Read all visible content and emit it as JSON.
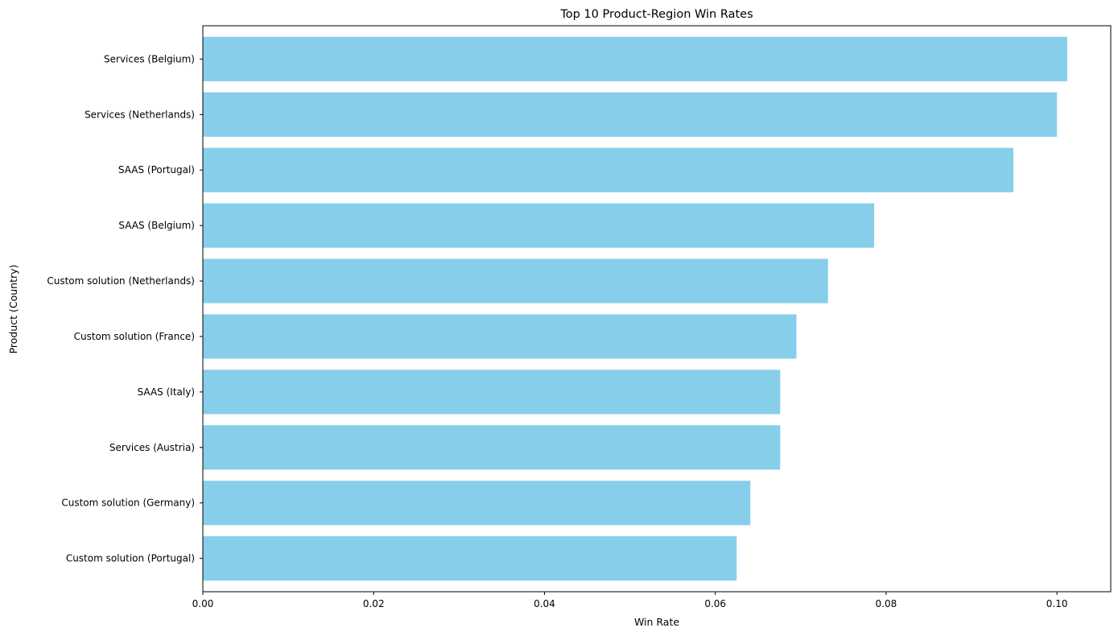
{
  "chart_data": {
    "type": "bar",
    "orientation": "horizontal",
    "title": "Top 10 Product-Region Win Rates",
    "xlabel": "Win Rate",
    "ylabel": "Product (Country)",
    "categories": [
      "Services (Belgium)",
      "Services (Netherlands)",
      "SAAS (Portugal)",
      "SAAS (Belgium)",
      "Custom solution (Netherlands)",
      "Custom solution (France)",
      "SAAS (Italy)",
      "Services (Austria)",
      "Custom solution (Germany)",
      "Custom solution (Portugal)"
    ],
    "values": [
      0.1012,
      0.1,
      0.0949,
      0.0786,
      0.0732,
      0.0695,
      0.0676,
      0.0676,
      0.0641,
      0.0625
    ],
    "xlim": [
      0,
      0.1063
    ],
    "xticks": [
      0.0,
      0.02,
      0.04,
      0.06,
      0.08,
      0.1
    ],
    "xtick_labels": [
      "0.00",
      "0.02",
      "0.04",
      "0.06",
      "0.08",
      "0.10"
    ],
    "bar_color": "#87ceeb",
    "grid": false,
    "legend": "none"
  }
}
